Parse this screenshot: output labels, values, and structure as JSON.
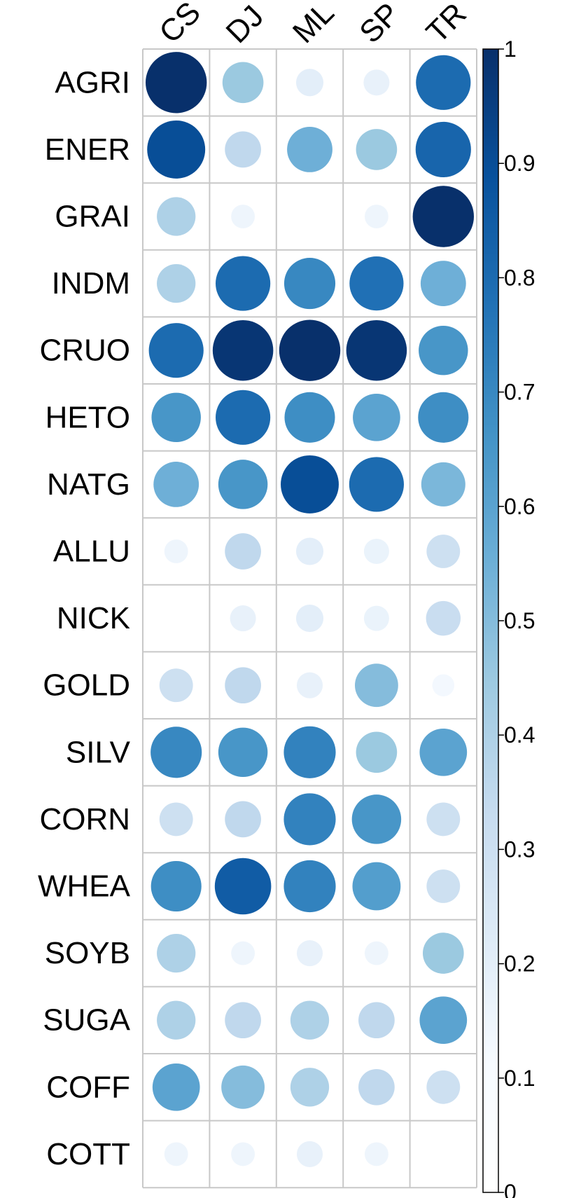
{
  "chart_data": {
    "type": "heatmap",
    "title": "",
    "xlabel": "",
    "ylabel": "",
    "columns": [
      "CS",
      "DJ",
      "ML",
      "SP",
      "TR"
    ],
    "rows": [
      "AGRI",
      "ENER",
      "GRAI",
      "INDM",
      "CRUO",
      "HETO",
      "NATG",
      "ALLU",
      "NICK",
      "GOLD",
      "SILV",
      "CORN",
      "WHEA",
      "SOYB",
      "SUGA",
      "COFF",
      "COTT"
    ],
    "values": [
      [
        1.0,
        0.45,
        0.2,
        0.18,
        0.8
      ],
      [
        0.9,
        0.35,
        0.55,
        0.45,
        0.82
      ],
      [
        0.4,
        0.15,
        0.0,
        0.15,
        1.0
      ],
      [
        0.4,
        0.8,
        0.7,
        0.78,
        0.55
      ],
      [
        0.8,
        0.98,
        1.0,
        0.98,
        0.65
      ],
      [
        0.65,
        0.8,
        0.68,
        0.6,
        0.68
      ],
      [
        0.55,
        0.65,
        0.9,
        0.8,
        0.52
      ],
      [
        0.15,
        0.35,
        0.2,
        0.17,
        0.3
      ],
      [
        0.0,
        0.18,
        0.2,
        0.17,
        0.32
      ],
      [
        0.3,
        0.35,
        0.18,
        0.5,
        0.13
      ],
      [
        0.7,
        0.65,
        0.72,
        0.45,
        0.6
      ],
      [
        0.3,
        0.35,
        0.72,
        0.65,
        0.3
      ],
      [
        0.68,
        0.85,
        0.72,
        0.62,
        0.3
      ],
      [
        0.4,
        0.15,
        0.18,
        0.15,
        0.45
      ],
      [
        0.4,
        0.35,
        0.4,
        0.35,
        0.6
      ],
      [
        0.6,
        0.5,
        0.4,
        0.35,
        0.3
      ],
      [
        0.15,
        0.15,
        0.18,
        0.15,
        0.0
      ]
    ],
    "colorbar": {
      "min": 0,
      "max": 1,
      "ticks": [
        "0",
        "0.1",
        "0.2",
        "0.3",
        "0.4",
        "0.5",
        "0.6",
        "0.7",
        "0.8",
        "0.9",
        "1"
      ],
      "colors": [
        "#FFFFFF",
        "#F7FBFF",
        "#DEEBF7",
        "#C6DBEF",
        "#9ECAE1",
        "#6BAED6",
        "#4292C6",
        "#2171B5",
        "#08519C",
        "#08306B"
      ]
    },
    "grid": true,
    "legend_placement": "right"
  }
}
